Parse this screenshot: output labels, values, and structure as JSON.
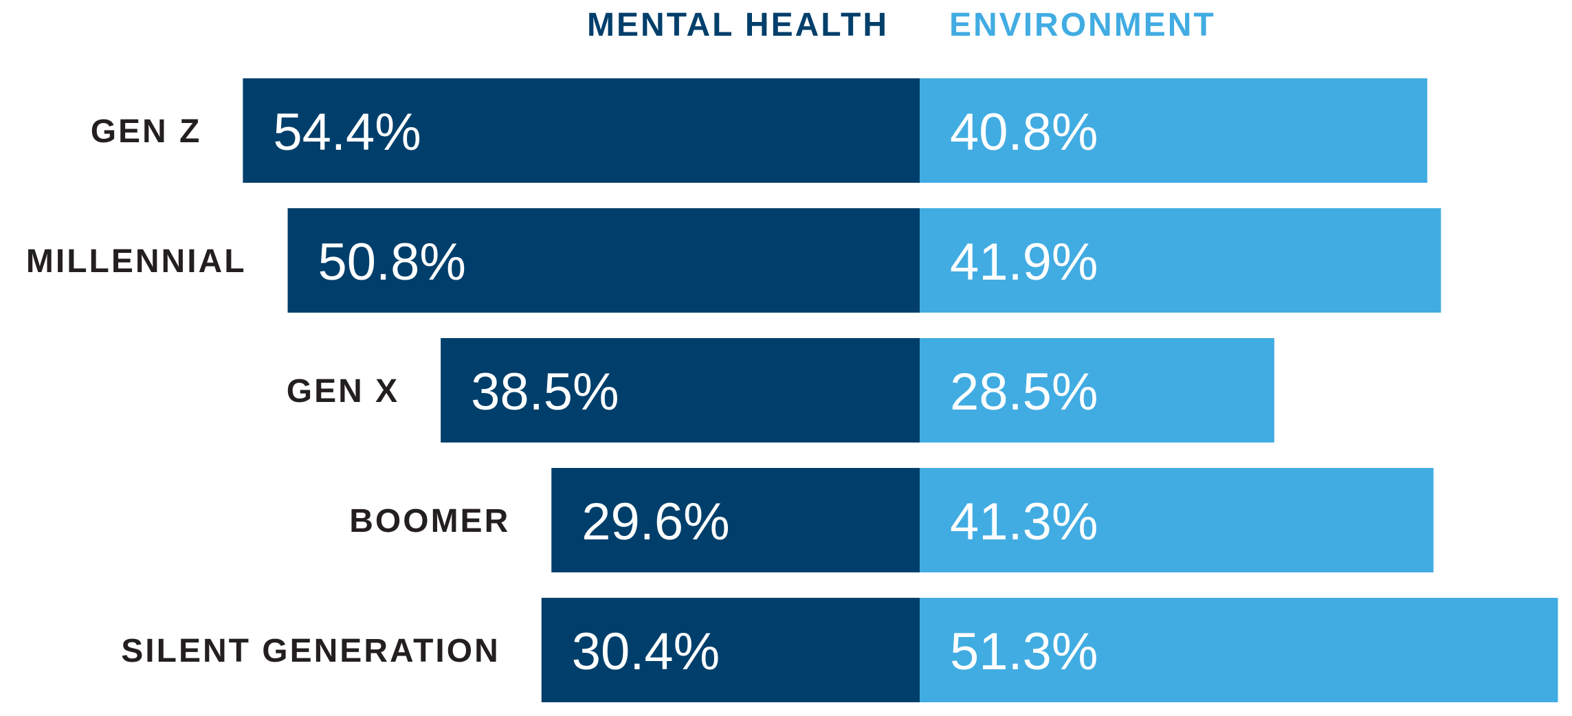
{
  "colors": {
    "mental_health": "#003f6b",
    "environment": "#41ace2",
    "category_text": "#231f20",
    "value_text": "#ffffff"
  },
  "chart_data": {
    "type": "bar",
    "orientation": "horizontal-diverging",
    "categories": [
      "GEN Z",
      "MILLENNIAL",
      "GEN X",
      "BOOMER",
      "SILENT GENERATION"
    ],
    "series": [
      {
        "name": "MENTAL HEALTH",
        "values": [
          54.4,
          50.8,
          38.5,
          29.6,
          30.4
        ],
        "labels": [
          "54.4%",
          "50.8%",
          "38.5%",
          "29.6%",
          "30.4%"
        ]
      },
      {
        "name": "ENVIRONMENT",
        "values": [
          40.8,
          41.9,
          28.5,
          41.3,
          51.3
        ],
        "labels": [
          "40.8%",
          "41.9%",
          "28.5%",
          "41.3%",
          "51.3%"
        ]
      }
    ],
    "unit": "%",
    "legend_position": "top",
    "grid": false
  }
}
